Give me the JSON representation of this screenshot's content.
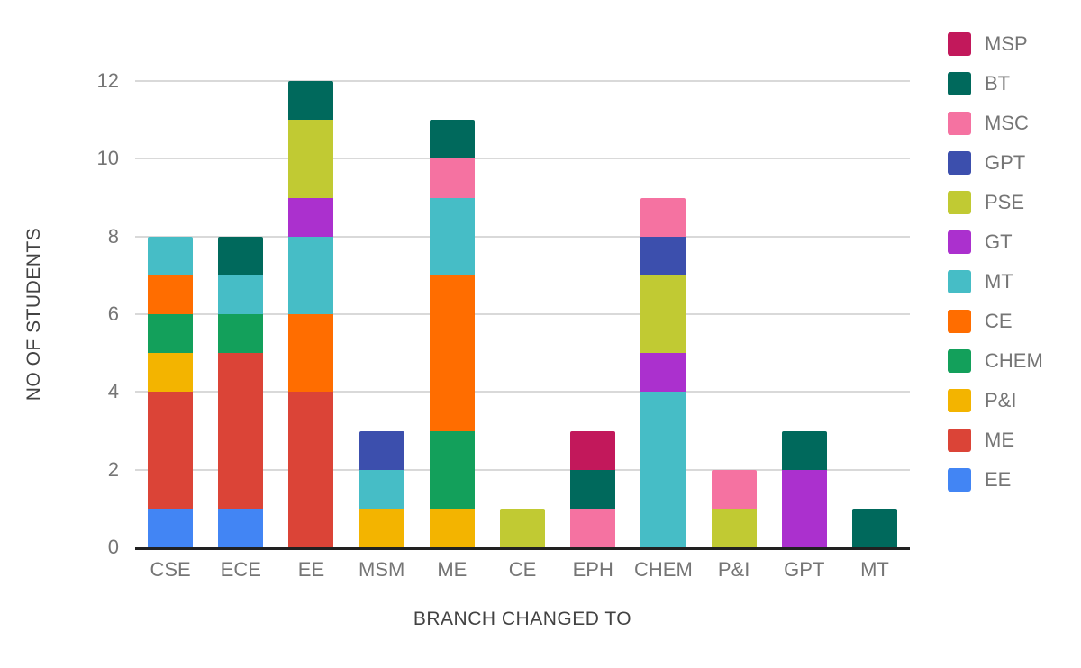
{
  "chart_data": {
    "type": "bar",
    "stacked": true,
    "title": "",
    "xlabel": "BRANCH CHANGED TO",
    "ylabel": "NO OF STUDENTS",
    "ylim": [
      0,
      12
    ],
    "yticks": [
      0,
      2,
      4,
      6,
      8,
      10,
      12
    ],
    "grid": true,
    "legend_position": "right",
    "categories": [
      "CSE",
      "ECE",
      "EE",
      "MSM",
      "ME",
      "CE",
      "EPH",
      "CHEM",
      "P&I",
      "GPT",
      "MT"
    ],
    "category_totals": [
      8,
      8,
      12,
      3,
      11,
      1,
      3,
      9,
      2,
      3,
      1
    ],
    "stack_order_note": "series listed bottom-to-top of stack",
    "series": [
      {
        "name": "EE",
        "color": "#4285f4",
        "values": [
          1,
          1,
          0,
          0,
          0,
          0,
          0,
          0,
          0,
          0,
          0
        ]
      },
      {
        "name": "ME",
        "color": "#db4437",
        "values": [
          3,
          4,
          4,
          0,
          0,
          0,
          0,
          0,
          0,
          0,
          0
        ]
      },
      {
        "name": "P&I",
        "color": "#f3b400",
        "values": [
          1,
          0,
          0,
          1,
          1,
          0,
          0,
          0,
          0,
          0,
          0
        ]
      },
      {
        "name": "CHEM",
        "color": "#13a05b",
        "values": [
          1,
          1,
          0,
          0,
          2,
          0,
          0,
          0,
          0,
          0,
          0
        ]
      },
      {
        "name": "CE",
        "color": "#ff6d00",
        "values": [
          1,
          0,
          2,
          0,
          4,
          0,
          0,
          0,
          0,
          0,
          0
        ]
      },
      {
        "name": "MT",
        "color": "#46bdc6",
        "values": [
          1,
          1,
          2,
          1,
          2,
          0,
          0,
          4,
          0,
          0,
          0
        ]
      },
      {
        "name": "GT",
        "color": "#ab30ce",
        "values": [
          0,
          0,
          1,
          0,
          0,
          0,
          0,
          1,
          0,
          2,
          0
        ]
      },
      {
        "name": "PSE",
        "color": "#c1ca33",
        "values": [
          0,
          0,
          2,
          0,
          0,
          1,
          0,
          2,
          1,
          0,
          0
        ]
      },
      {
        "name": "GPT",
        "color": "#3c4fad",
        "values": [
          0,
          0,
          0,
          1,
          0,
          0,
          0,
          1,
          0,
          0,
          0
        ]
      },
      {
        "name": "MSC",
        "color": "#f572a1",
        "values": [
          0,
          0,
          0,
          0,
          1,
          0,
          1,
          1,
          1,
          0,
          0
        ]
      },
      {
        "name": "BT",
        "color": "#00695c",
        "values": [
          0,
          1,
          1,
          0,
          1,
          0,
          1,
          0,
          0,
          1,
          1
        ]
      },
      {
        "name": "MSP",
        "color": "#c2185b",
        "values": [
          0,
          0,
          0,
          0,
          0,
          0,
          1,
          0,
          0,
          0,
          0
        ]
      }
    ],
    "legend_order_top_to_bottom": [
      "MSP",
      "BT",
      "MSC",
      "GPT",
      "PSE",
      "GT",
      "MT",
      "CE",
      "CHEM",
      "P&I",
      "ME",
      "EE"
    ]
  },
  "colors": {
    "gridline": "#d9d9d9",
    "baseline": "#212121",
    "tick_label": "#757575",
    "axis_title": "#424242",
    "background": "#ffffff"
  }
}
